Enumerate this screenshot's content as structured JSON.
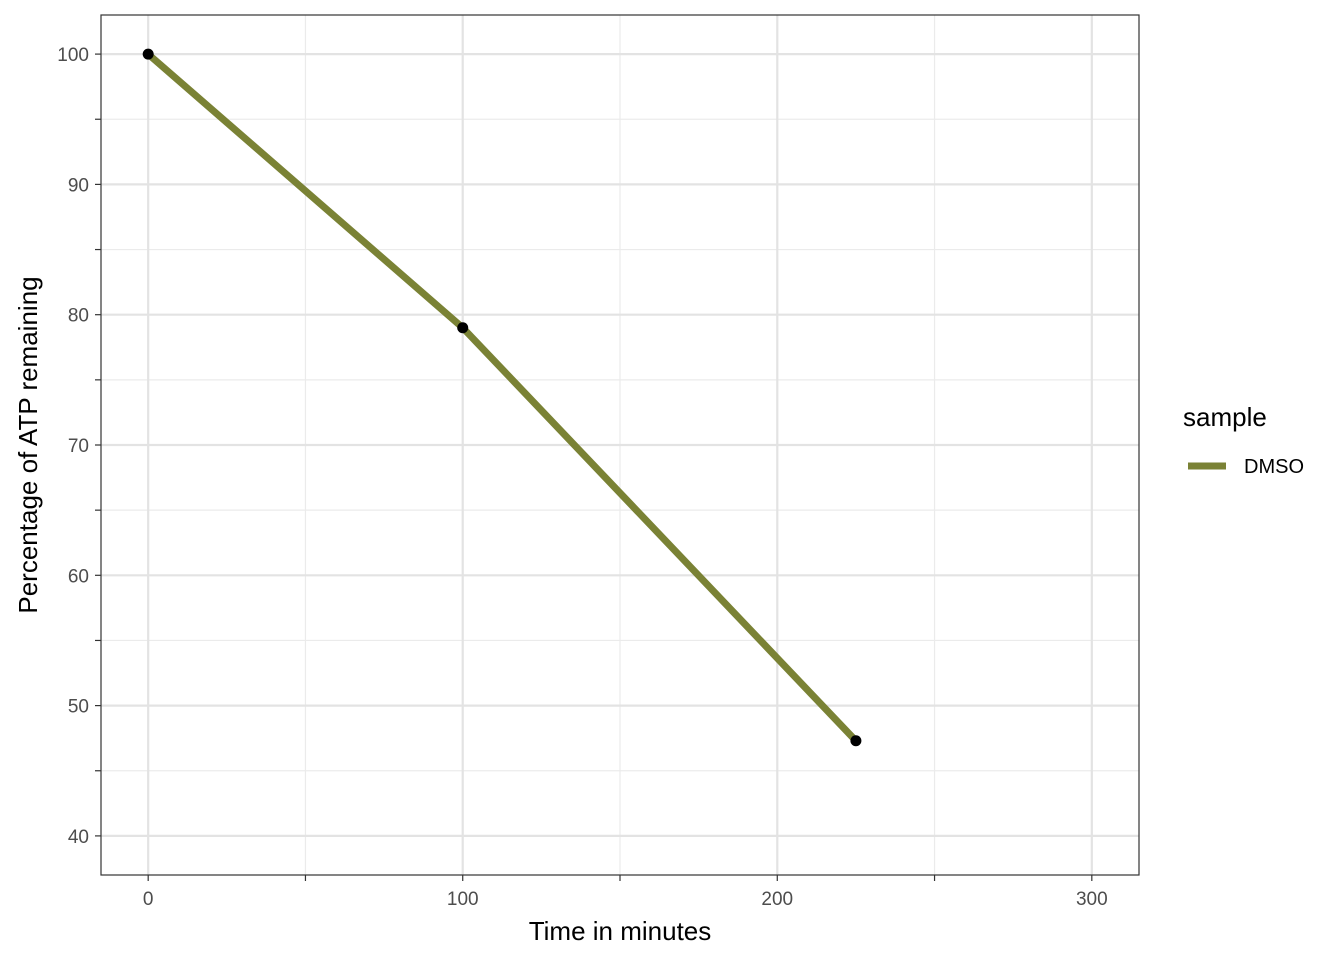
{
  "chart_data": {
    "type": "line",
    "title": "",
    "xlabel": "Time in minutes",
    "ylabel": "Percentage of ATP remaining",
    "xlim": [
      -15,
      315
    ],
    "ylim": [
      37,
      103
    ],
    "x_ticks": [
      0,
      100,
      200,
      300
    ],
    "x_minor_ticks": [
      50,
      150,
      250
    ],
    "y_ticks": [
      40,
      50,
      60,
      70,
      80,
      90,
      100
    ],
    "y_minor_ticks": [
      45,
      55,
      65,
      75,
      85,
      95
    ],
    "grid": true,
    "legend": {
      "title": "sample",
      "position": "right"
    },
    "series": [
      {
        "name": "DMSO",
        "color": "#7a8235",
        "point_color": "#000000",
        "x": [
          0,
          100,
          225
        ],
        "y": [
          100,
          79,
          47.3
        ]
      }
    ]
  }
}
